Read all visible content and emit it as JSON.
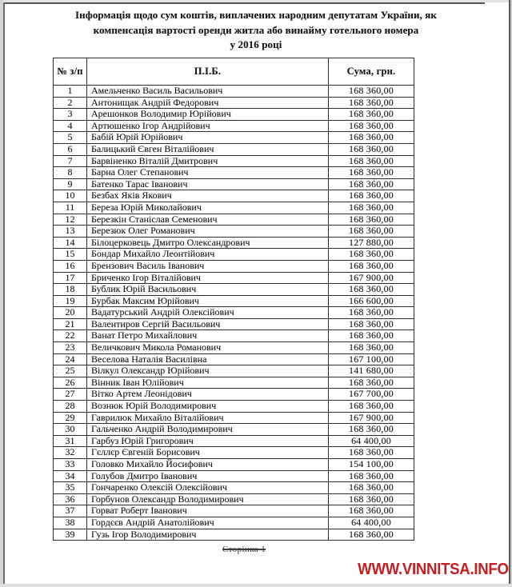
{
  "title": {
    "lines": [
      "Інформація щодо сум коштів, виплачених народним депутатам України, як",
      "компенсація вартості оренди житла або винайму готельного номера",
      "у  2016 році"
    ]
  },
  "table": {
    "columns": {
      "num": "№ з/п",
      "name": "П.І.Б.",
      "sum": "Сума, грн."
    },
    "rows": [
      {
        "num": "1",
        "name": "Амельченко Василь Васильович",
        "sum": "168 360,00"
      },
      {
        "num": "2",
        "name": "Антонищак Андрій Федорович",
        "sum": "168 360,00"
      },
      {
        "num": "3",
        "name": "Арешонков Володимир Юрійович",
        "sum": "168 360,00"
      },
      {
        "num": "4",
        "name": "Артюшенко Ігор Андрійович",
        "sum": "168 360,00"
      },
      {
        "num": "5",
        "name": "Бабій Юрій Юрійович",
        "sum": "168 360,00"
      },
      {
        "num": "6",
        "name": "Балицький Євген Віталійович",
        "sum": "168 360,00"
      },
      {
        "num": "7",
        "name": "Барвіненко Віталій Дмитрович",
        "sum": "168 360,00"
      },
      {
        "num": "8",
        "name": "Барна Олег Степанович",
        "sum": "168 360,00"
      },
      {
        "num": "9",
        "name": "Батенко Тарас Іванович",
        "sum": "168 360,00"
      },
      {
        "num": "10",
        "name": "Безбах Яків Якович",
        "sum": "168 360,00"
      },
      {
        "num": "11",
        "name": "Береза Юрій Миколайович",
        "sum": "168 360,00"
      },
      {
        "num": "12",
        "name": "Березкін Станіслав Семенович",
        "sum": "168 360,00"
      },
      {
        "num": "13",
        "name": "Березюк Олег Романович",
        "sum": "168 360,00"
      },
      {
        "num": "14",
        "name": "Білоцерковець Дмитро Олександрович",
        "sum": "127 880,00"
      },
      {
        "num": "15",
        "name": "Бондар Михайло Леонтійович",
        "sum": "168 360,00"
      },
      {
        "num": "16",
        "name": "Брензович Василь Іванович",
        "sum": "168 360,00"
      },
      {
        "num": "17",
        "name": "Бриченко Ігор Віталійович",
        "sum": "167 900,00"
      },
      {
        "num": "18",
        "name": "Бублик Юрій Васильович",
        "sum": "168 360,00"
      },
      {
        "num": "19",
        "name": "Бурбак Максим Юрійович",
        "sum": "166 600,00"
      },
      {
        "num": "20",
        "name": "Вадатурський Андрій Олексійович",
        "sum": "168 360,00"
      },
      {
        "num": "21",
        "name": "Валентиров Сергій Васильович",
        "sum": "168 360,00"
      },
      {
        "num": "22",
        "name": "Ванат Петро Михайлович",
        "sum": "168 360,00"
      },
      {
        "num": "23",
        "name": "Величкович Микола Романович",
        "sum": "168 360,00"
      },
      {
        "num": "24",
        "name": "Веселова Наталія Василівна",
        "sum": "167 100,00"
      },
      {
        "num": "25",
        "name": "Вілкул Олександр Юрійович",
        "sum": "141 680,00"
      },
      {
        "num": "26",
        "name": "Вінник Іван Юлійович",
        "sum": "168 360,00"
      },
      {
        "num": "27",
        "name": "Вітко Артем Леонідович",
        "sum": "167 700,00"
      },
      {
        "num": "28",
        "name": "Вознюк Юрій Володимирович",
        "sum": "168 360,00"
      },
      {
        "num": "29",
        "name": "Гаврилюк Михайло Віталійович",
        "sum": "167 900,00"
      },
      {
        "num": "30",
        "name": "Гальченко Андрій Володимирович",
        "sum": "168 360,00"
      },
      {
        "num": "31",
        "name": "Гарбуз Юрій Григорович",
        "sum": "64 400,00"
      },
      {
        "num": "32",
        "name": "Гєллєр Євгеній Борисович",
        "sum": "168 360,00"
      },
      {
        "num": "33",
        "name": "Головко Михайло Йосифович",
        "sum": "154 100,00"
      },
      {
        "num": "34",
        "name": "Голубов Дмитро Іванович",
        "sum": "168 360,00"
      },
      {
        "num": "35",
        "name": "Гончаренко Олексій Олексійович",
        "sum": "168 360,00"
      },
      {
        "num": "36",
        "name": "Горбунов Олександр Володимирович",
        "sum": "168 360,00"
      },
      {
        "num": "37",
        "name": "Горват Роберт Іванович",
        "sum": "168 360,00"
      },
      {
        "num": "38",
        "name": "Гордєєв Андрій Анатолійович",
        "sum": "64 400,00"
      },
      {
        "num": "39",
        "name": "Гузь Ігор Володимирович",
        "sum": "168 360,00"
      }
    ]
  },
  "footer": {
    "page_label": "Сторінка 1"
  },
  "watermark": {
    "text": "WWW.VINNITSA.INFO",
    "color": "#c41e22"
  }
}
